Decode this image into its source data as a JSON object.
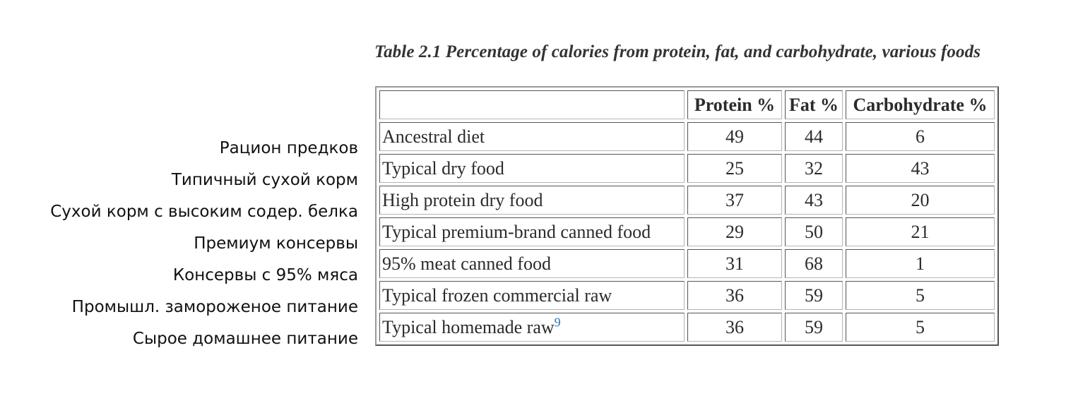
{
  "caption": "Table 2.1 Percentage of calories from protein, fat, and carbohydrate, various foods",
  "ru_labels": [
    "Рацион предков",
    "Типичный сухой корм",
    "Сухой корм с высоким содер. белка",
    "Премиум консервы",
    "Консервы с 95% мяса",
    "Промышл. замороженое питание",
    "Сырое домашнее питание"
  ],
  "table": {
    "headers": [
      "",
      "Protein %",
      "Fat %",
      "Carbohydrate %"
    ],
    "rows": [
      {
        "name": "Ancestral diet",
        "footnote": "",
        "protein": "49",
        "fat": "44",
        "carb": "6"
      },
      {
        "name": "Typical dry food",
        "footnote": "",
        "protein": "25",
        "fat": "32",
        "carb": "43"
      },
      {
        "name": "High protein dry food",
        "footnote": "",
        "protein": "37",
        "fat": "43",
        "carb": "20"
      },
      {
        "name": "Typical premium-brand canned food",
        "footnote": "",
        "protein": "29",
        "fat": "50",
        "carb": "21"
      },
      {
        "name": "95% meat canned food",
        "footnote": "",
        "protein": "31",
        "fat": "68",
        "carb": "1"
      },
      {
        "name": "Typical frozen commercial raw",
        "footnote": "",
        "protein": "36",
        "fat": "59",
        "carb": "5"
      },
      {
        "name": "Typical homemade raw",
        "footnote": "9",
        "protein": "36",
        "fat": "59",
        "carb": "5"
      }
    ]
  },
  "colors": {
    "footnote_link": "#2a6fd6",
    "table_border": "#555555"
  }
}
